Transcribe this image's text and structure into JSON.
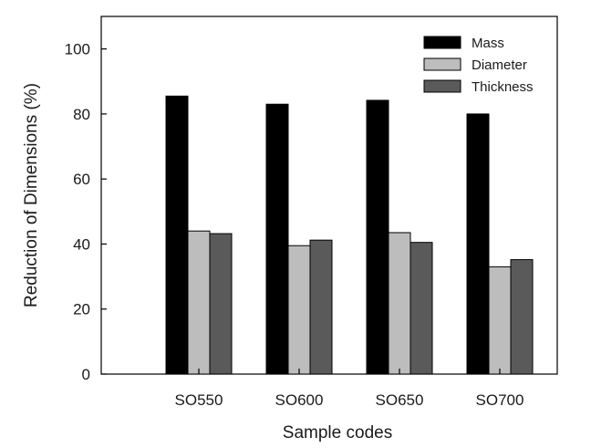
{
  "chart_data": {
    "type": "bar",
    "title": "",
    "xlabel": "Sample codes",
    "ylabel": "Reduction of Dimensions (%)",
    "ylim": [
      0,
      110
    ],
    "yticks": [
      0,
      20,
      40,
      60,
      80,
      100
    ],
    "grid": false,
    "legend_position": "top-right",
    "categories": [
      "SO550",
      "SO600",
      "SO650",
      "SO700"
    ],
    "series": [
      {
        "name": "Mass",
        "color": "#000000",
        "values": [
          85.5,
          83,
          84.2,
          80
        ]
      },
      {
        "name": "Diameter",
        "color": "#bdbdbd",
        "values": [
          44,
          39.5,
          43.5,
          33
        ]
      },
      {
        "name": "Thickness",
        "color": "#5a5a5a",
        "values": [
          43.2,
          41.2,
          40.5,
          35.2
        ]
      }
    ]
  }
}
